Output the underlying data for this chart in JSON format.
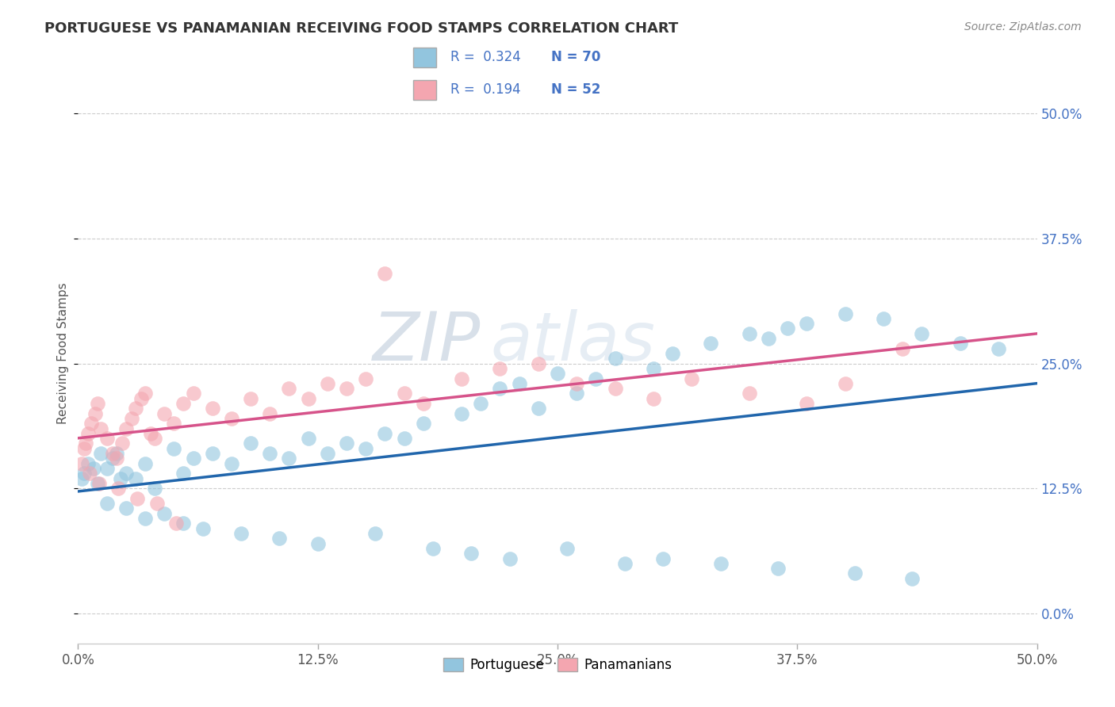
{
  "title": "PORTUGUESE VS PANAMANIAN RECEIVING FOOD STAMPS CORRELATION CHART",
  "source_text": "Source: ZipAtlas.com",
  "ylabel": "Receiving Food Stamps",
  "xlim": [
    0.0,
    50.0
  ],
  "ylim": [
    -3.0,
    55.0
  ],
  "yticks": [
    0.0,
    12.5,
    25.0,
    37.5,
    50.0
  ],
  "xticks": [
    0.0,
    12.5,
    25.0,
    37.5,
    50.0
  ],
  "xtick_labels": [
    "0.0%",
    "12.5%",
    "25.0%",
    "37.5%",
    "50.0%"
  ],
  "ytick_labels": [
    "0.0%",
    "12.5%",
    "25.0%",
    "37.5%",
    "50.0%"
  ],
  "blue_color": "#92c5de",
  "pink_color": "#f4a6b0",
  "trend_blue": "#2166ac",
  "trend_pink": "#d6538a",
  "R_blue": 0.324,
  "N_blue": 70,
  "R_pink": 0.194,
  "N_pink": 52,
  "watermark": "ZIPatlas",
  "watermark_color": "#d0d8e8",
  "legend_label_blue": "Portuguese",
  "legend_label_pink": "Panamanians",
  "blue_scatter_x": [
    0.2,
    0.3,
    0.5,
    0.8,
    1.0,
    1.2,
    1.5,
    1.8,
    2.0,
    2.2,
    2.5,
    3.0,
    3.5,
    4.0,
    5.0,
    5.5,
    6.0,
    7.0,
    8.0,
    9.0,
    10.0,
    11.0,
    12.0,
    13.0,
    14.0,
    15.0,
    16.0,
    17.0,
    18.0,
    20.0,
    21.0,
    22.0,
    23.0,
    24.0,
    25.0,
    26.0,
    27.0,
    28.0,
    30.0,
    31.0,
    33.0,
    35.0,
    36.0,
    37.0,
    38.0,
    40.0,
    42.0,
    44.0,
    46.0,
    48.0,
    1.5,
    2.5,
    3.5,
    4.5,
    5.5,
    6.5,
    8.5,
    10.5,
    12.5,
    15.5,
    18.5,
    20.5,
    22.5,
    25.5,
    28.5,
    30.5,
    33.5,
    36.5,
    40.5,
    43.5
  ],
  "blue_scatter_y": [
    13.5,
    14.0,
    15.0,
    14.5,
    13.0,
    16.0,
    14.5,
    15.5,
    16.0,
    13.5,
    14.0,
    13.5,
    15.0,
    12.5,
    16.5,
    14.0,
    15.5,
    16.0,
    15.0,
    17.0,
    16.0,
    15.5,
    17.5,
    16.0,
    17.0,
    16.5,
    18.0,
    17.5,
    19.0,
    20.0,
    21.0,
    22.5,
    23.0,
    20.5,
    24.0,
    22.0,
    23.5,
    25.5,
    24.5,
    26.0,
    27.0,
    28.0,
    27.5,
    28.5,
    29.0,
    30.0,
    29.5,
    28.0,
    27.0,
    26.5,
    11.0,
    10.5,
    9.5,
    10.0,
    9.0,
    8.5,
    8.0,
    7.5,
    7.0,
    8.0,
    6.5,
    6.0,
    5.5,
    6.5,
    5.0,
    5.5,
    5.0,
    4.5,
    4.0,
    3.5
  ],
  "pink_scatter_x": [
    0.2,
    0.3,
    0.4,
    0.5,
    0.7,
    0.9,
    1.0,
    1.2,
    1.5,
    1.8,
    2.0,
    2.3,
    2.5,
    2.8,
    3.0,
    3.3,
    3.5,
    3.8,
    4.0,
    4.5,
    5.0,
    5.5,
    6.0,
    7.0,
    8.0,
    9.0,
    10.0,
    11.0,
    12.0,
    13.0,
    14.0,
    15.0,
    16.0,
    17.0,
    18.0,
    20.0,
    22.0,
    24.0,
    26.0,
    28.0,
    30.0,
    32.0,
    35.0,
    38.0,
    40.0,
    43.0,
    0.6,
    1.1,
    2.1,
    3.1,
    4.1,
    5.1
  ],
  "pink_scatter_y": [
    15.0,
    16.5,
    17.0,
    18.0,
    19.0,
    20.0,
    21.0,
    18.5,
    17.5,
    16.0,
    15.5,
    17.0,
    18.5,
    19.5,
    20.5,
    21.5,
    22.0,
    18.0,
    17.5,
    20.0,
    19.0,
    21.0,
    22.0,
    20.5,
    19.5,
    21.5,
    20.0,
    22.5,
    21.5,
    23.0,
    22.5,
    23.5,
    34.0,
    22.0,
    21.0,
    23.5,
    24.5,
    25.0,
    23.0,
    22.5,
    21.5,
    23.5,
    22.0,
    21.0,
    23.0,
    26.5,
    14.0,
    13.0,
    12.5,
    11.5,
    11.0,
    9.0
  ]
}
